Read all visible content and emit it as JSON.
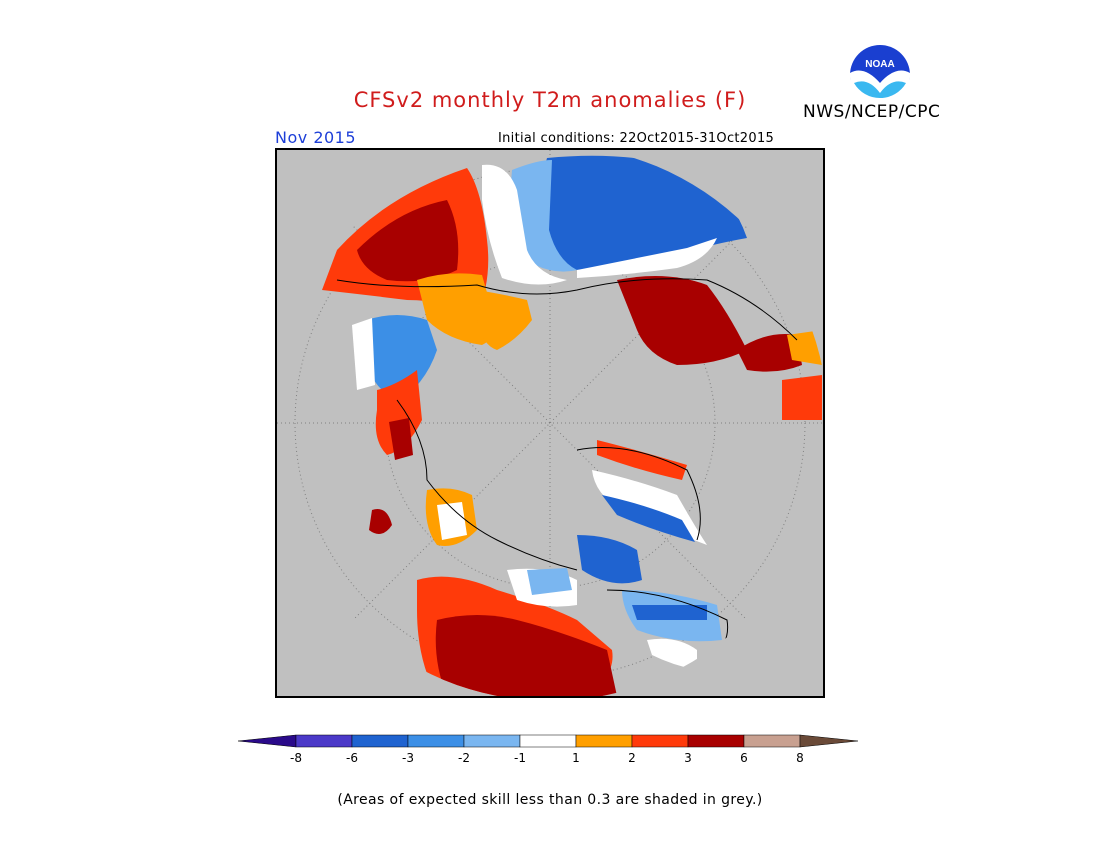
{
  "title": "CFSv2 monthly T2m anomalies (F)",
  "agency": "NWS/NCEP/CPC",
  "logo_text": "NOAA",
  "valid_month": "Nov 2015",
  "initial_conditions": "Initial conditions: 22Oct2015-31Oct2015",
  "footnote": "(Areas of expected skill less than 0.3 are shaded in grey.)",
  "colorbar": {
    "labels": [
      "-8",
      "-6",
      "-3",
      "-2",
      "-1",
      "1",
      "2",
      "3",
      "6",
      "8"
    ],
    "colors": [
      "#2a0a8a",
      "#4b39c8",
      "#1f63d0",
      "#3c8fe6",
      "#7ab6f0",
      "#ffffff",
      "#ff9f00",
      "#ff3a0a",
      "#a80000",
      "#c8a090",
      "#6a4a38"
    ]
  },
  "colors": {
    "title": "#d01c1c",
    "month": "#1d3fd8",
    "land_grey": "#c0c0c0"
  }
}
